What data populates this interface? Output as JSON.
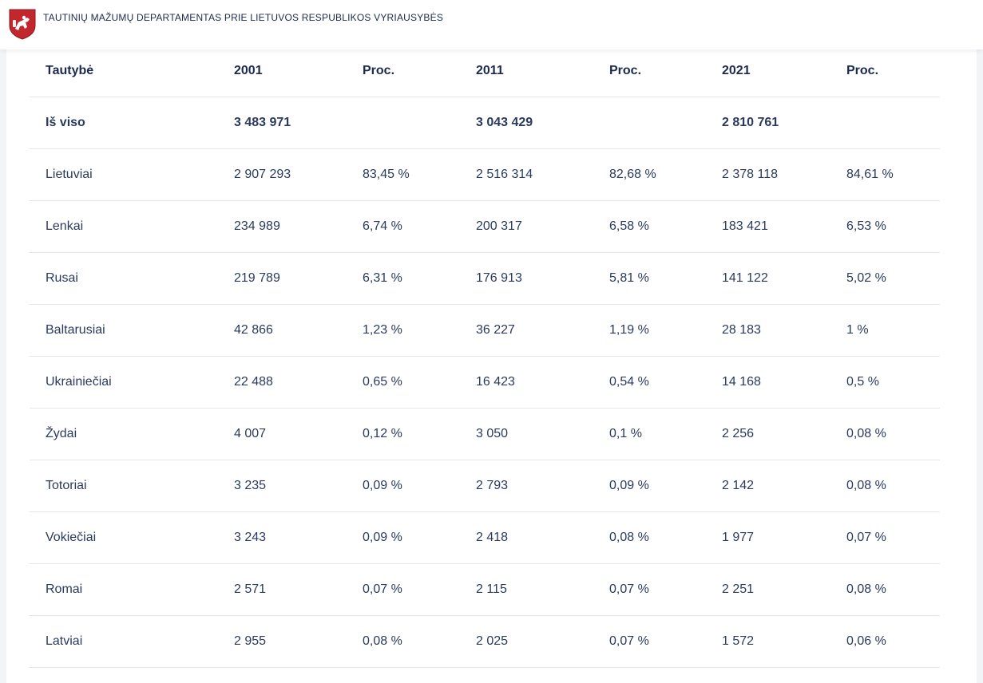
{
  "header": {
    "org_name": "TAUTINIŲ MAŽUMŲ DEPARTAMENTAS PRIE LIETUVOS RESPUBLIKOS VYRIAUSYBĖS",
    "logo_icon": "coat-of-arms-icon",
    "brand_color": "#c1272d"
  },
  "table": {
    "columns": [
      "Tautybė",
      "2001",
      "Proc.",
      "2011",
      "Proc.",
      "2021",
      "Proc."
    ],
    "total": {
      "label": "Iš viso",
      "v2001": "3 483 971",
      "p2001": "",
      "v2011": "3 043 429",
      "p2011": "",
      "v2021": "2 810 761",
      "p2021": ""
    },
    "rows": [
      {
        "label": "Lietuviai",
        "v2001": "2 907 293",
        "p2001": "83,45 %",
        "v2011": "2 516 314",
        "p2011": "82,68 %",
        "v2021": "2 378 118",
        "p2021": "84,61 %"
      },
      {
        "label": "Lenkai",
        "v2001": "234 989",
        "p2001": "6,74 %",
        "v2011": "200 317",
        "p2011": "6,58 %",
        "v2021": "183 421",
        "p2021": "6,53 %"
      },
      {
        "label": "Rusai",
        "v2001": "219 789",
        "p2001": "6,31 %",
        "v2011": "176 913",
        "p2011": "5,81 %",
        "v2021": "141 122",
        "p2021": "5,02 %"
      },
      {
        "label": "Baltarusiai",
        "v2001": "42 866",
        "p2001": "1,23 %",
        "v2011": "36 227",
        "p2011": "1,19 %",
        "v2021": "28 183",
        "p2021": "1 %"
      },
      {
        "label": "Ukrainiečiai",
        "v2001": "22 488",
        "p2001": "0,65 %",
        "v2011": "16 423",
        "p2011": "0,54 %",
        "v2021": "14 168",
        "p2021": "0,5 %"
      },
      {
        "label": "Žydai",
        "v2001": "4 007",
        "p2001": "0,12 %",
        "v2011": "3 050",
        "p2011": "0,1 %",
        "v2021": "2 256",
        "p2021": "0,08 %"
      },
      {
        "label": "Totoriai",
        "v2001": "3 235",
        "p2001": "0,09 %",
        "v2011": "2 793",
        "p2011": "0,09 %",
        "v2021": "2 142",
        "p2021": "0,08 %"
      },
      {
        "label": "Vokiečiai",
        "v2001": "3 243",
        "p2001": "0,09 %",
        "v2011": "2 418",
        "p2011": "0,08 %",
        "v2021": "1 977",
        "p2021": "0,07 %"
      },
      {
        "label": "Romai",
        "v2001": "2 571",
        "p2001": "0,07 %",
        "v2011": "2 115",
        "p2011": "0,07 %",
        "v2021": "2 251",
        "p2021": "0,08 %"
      },
      {
        "label": "Latviai",
        "v2001": "2 955",
        "p2001": "0,08 %",
        "v2011": "2 025",
        "p2011": "0,07 %",
        "v2021": "1 572",
        "p2021": "0,06 %"
      }
    ]
  }
}
